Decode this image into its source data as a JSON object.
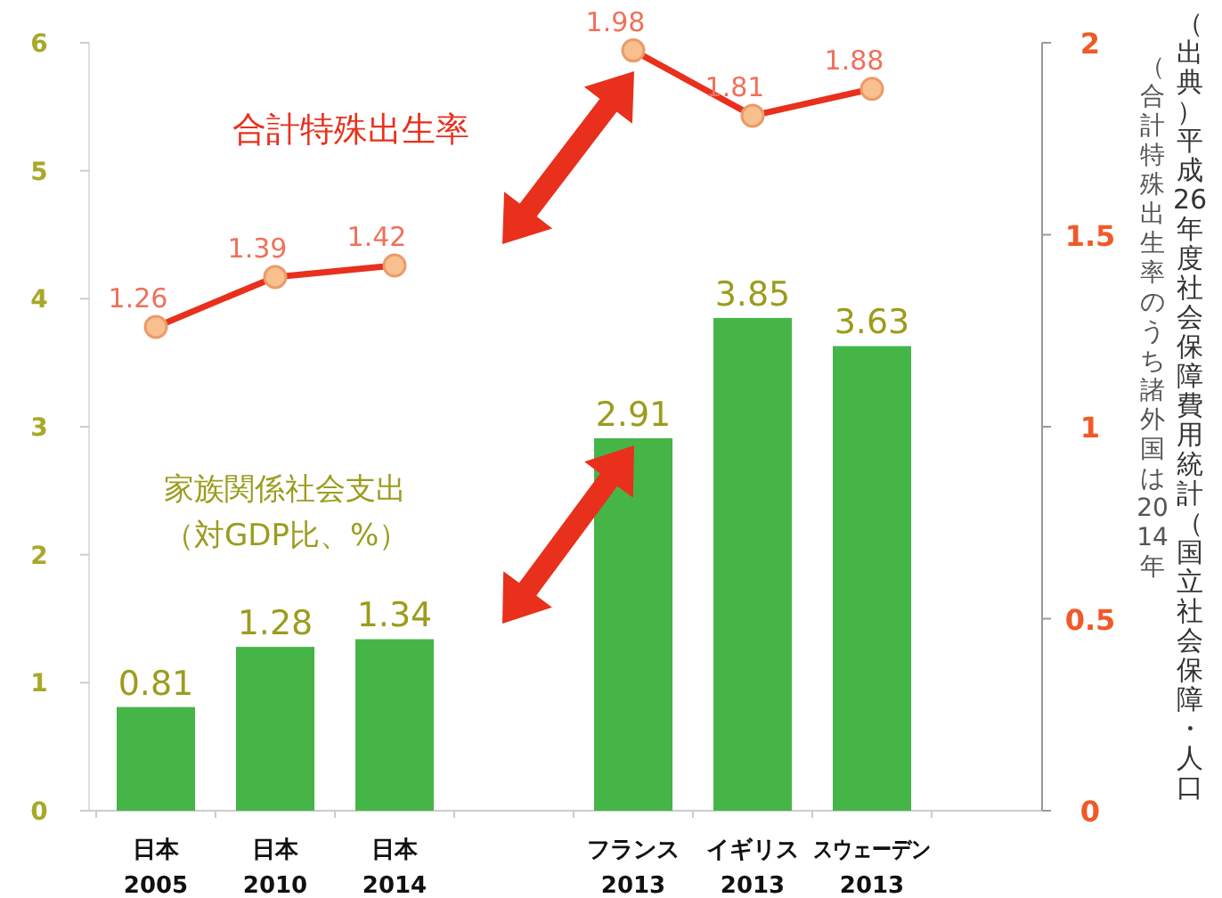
{
  "chart_data": {
    "type": "bar",
    "categories": [
      "日本\n2005",
      "日本\n2010",
      "日本\n2014",
      null,
      "フランス\n2013",
      "イギリス\n2013",
      "スウェーデン\n2013"
    ],
    "series": [
      {
        "color": "#46b548",
        "values": [
          0.81,
          1.28,
          1.34,
          null,
          2.91,
          3.85,
          3.63
        ]
      },
      {
        "type": "line",
        "axis": "y2",
        "color": "#e8301c",
        "marker": "circle",
        "values": [
          1.26,
          1.39,
          1.42,
          null,
          1.98,
          1.81,
          1.88
        ]
      }
    ],
    "ylim": [
      0,
      6
    ],
    "yticks": [
      0,
      1,
      2,
      3,
      4,
      5,
      6
    ],
    "y2lim": [
      0,
      2
    ],
    "y2ticks": [
      0,
      0.5,
      1,
      1.5,
      2
    ],
    "data_labels": true,
    "legend": false,
    "grid": false,
    "annotations": [
      "合計特殊出生率",
      "家族関係社会支出",
      "（対GDP比、%）",
      "（出典）平成26年度社会保障費用統計（国立社会保障・人口",
      "（合計特殊出生率のうち諸外国は2014年"
    ]
  }
}
